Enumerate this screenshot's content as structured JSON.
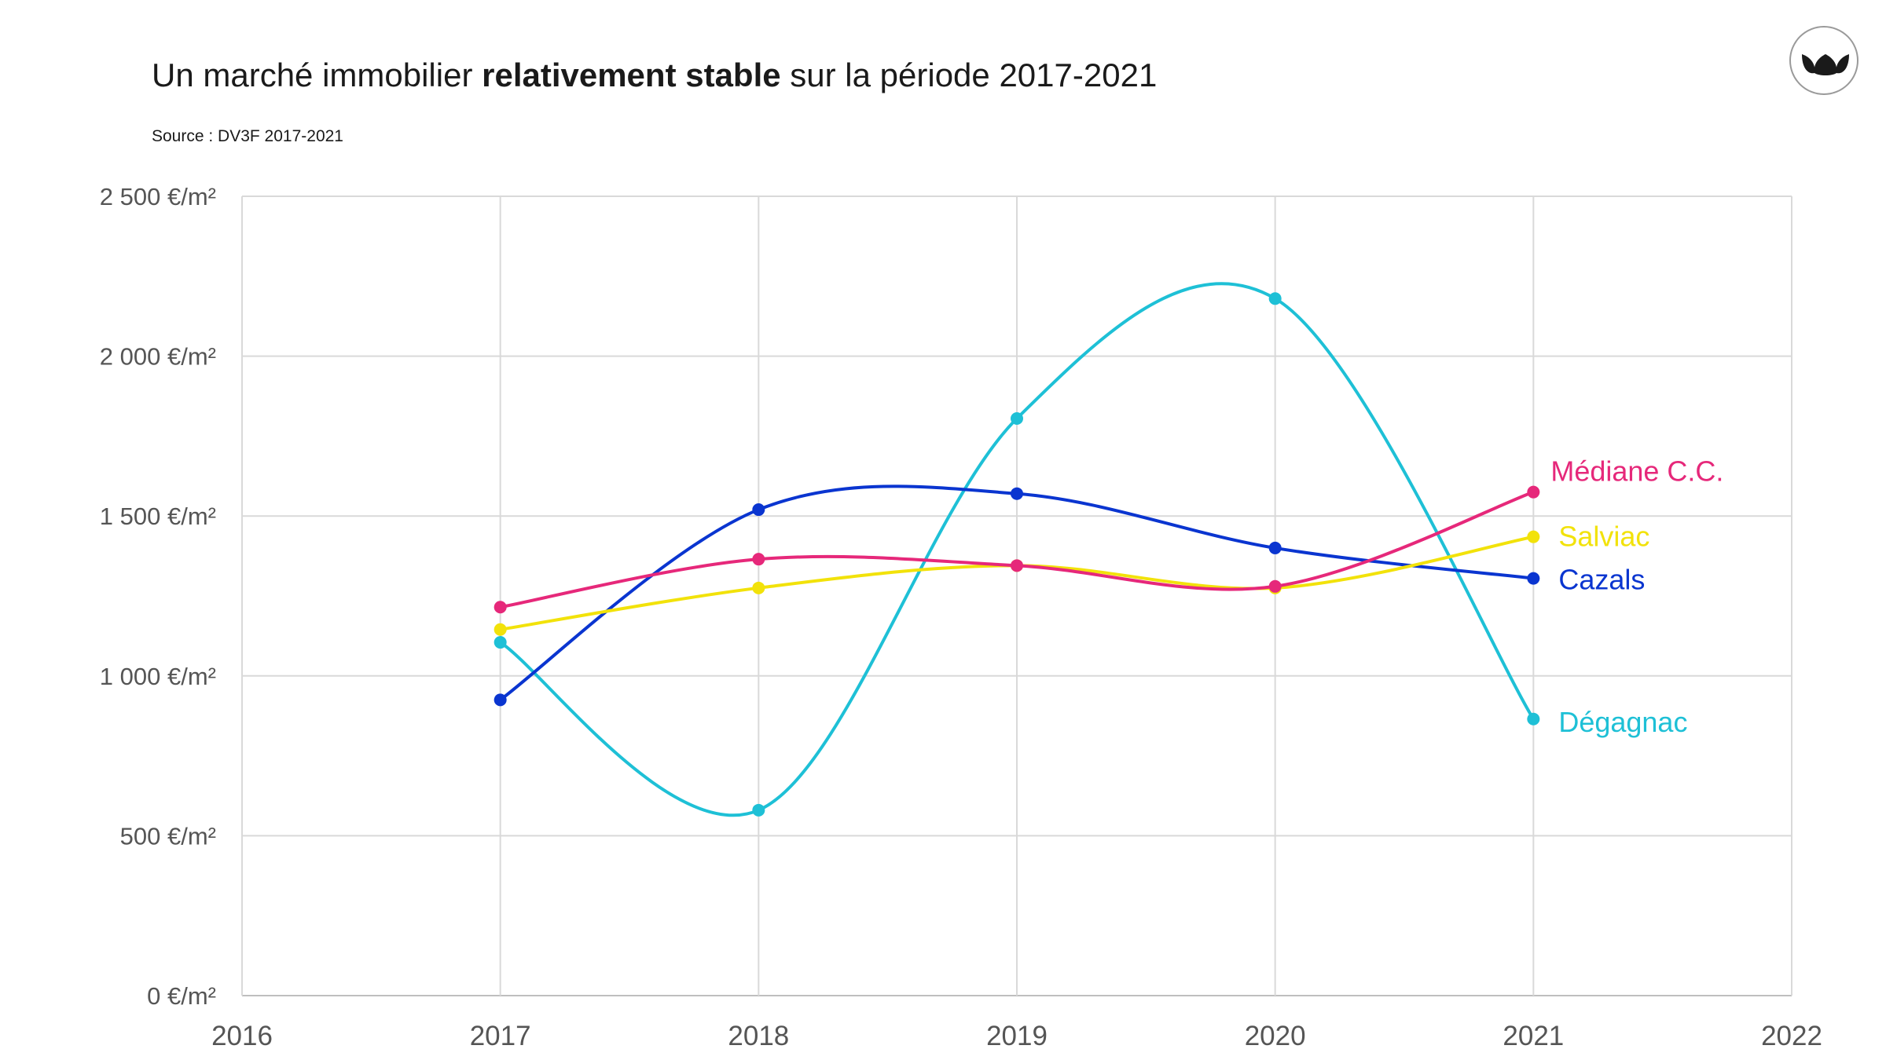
{
  "title": {
    "part1": "Un marché immobilier ",
    "bold": "relativement stable",
    "part2": " sur la période 2017-2021"
  },
  "source": "Source : DV3F 2017-2021",
  "logo": {
    "icon": "three-leaves-logo-icon"
  },
  "chart_data": {
    "type": "line",
    "title": "Un marché immobilier relativement stable sur la période 2017-2021",
    "xlabel": "",
    "ylabel": "",
    "xlim": [
      2016,
      2022
    ],
    "ylim": [
      0,
      2500
    ],
    "x_ticks": [
      "2016",
      "2017",
      "2018",
      "2019",
      "2020",
      "2021",
      "2022"
    ],
    "y_ticks": [
      "0 €/m²",
      "500 €/m²",
      "1 000 €/m²",
      "1 500 €/m²",
      "2 000 €/m²",
      "2 500 €/m²"
    ],
    "y_tick_values": [
      0,
      500,
      1000,
      1500,
      2000,
      2500
    ],
    "x_tick_values": [
      2016,
      2017,
      2018,
      2019,
      2020,
      2021,
      2022
    ],
    "grid": true,
    "smooth": true,
    "legend": "inline labels at line ends",
    "x": [
      2017,
      2018,
      2019,
      2020,
      2021
    ],
    "series": [
      {
        "name": "Médiane C.C.",
        "color": "#e6287a",
        "values": [
          1215,
          1365,
          1345,
          1280,
          1575
        ]
      },
      {
        "name": "Salviac",
        "color": "#f2e20a",
        "values": [
          1145,
          1275,
          1345,
          1275,
          1435
        ]
      },
      {
        "name": "Cazals",
        "color": "#0a35d0",
        "values": [
          925,
          1520,
          1570,
          1400,
          1305
        ]
      },
      {
        "name": "Dégagnac",
        "color": "#1ec0d6",
        "values": [
          1105,
          580,
          1805,
          2180,
          865
        ]
      }
    ]
  }
}
